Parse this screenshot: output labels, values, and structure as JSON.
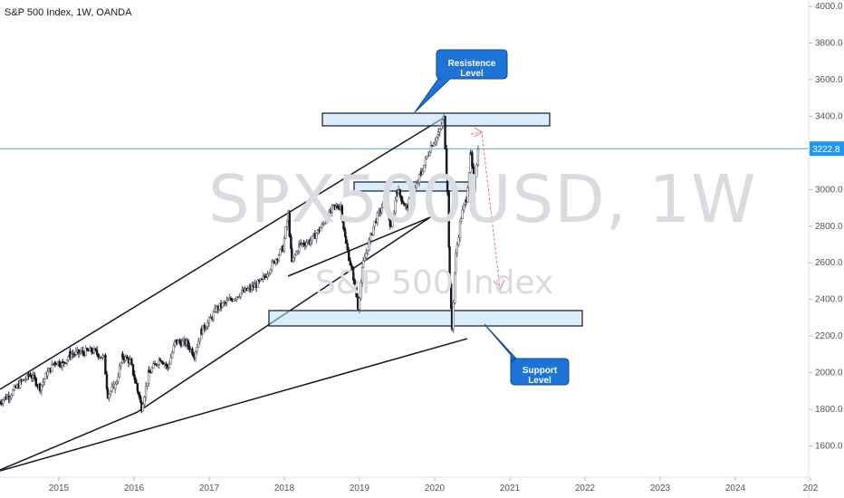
{
  "chart_data": {
    "type": "candlestick",
    "title": "S&P 500 Index, 1W, OANDA",
    "watermark_symbol": "SPX500USD, 1W",
    "watermark_name": "S&P 500 Index",
    "y_ticks": [
      "4000.0",
      "3800.0",
      "3600.0",
      "3400.0",
      "3200.0",
      "3000.0",
      "2800.0",
      "2600.0",
      "2400.0",
      "2200.0",
      "2000.0",
      "1800.0",
      "1600.0"
    ],
    "x_ticks": [
      "2015",
      "2016",
      "2017",
      "2018",
      "2019",
      "2020",
      "2021",
      "2022",
      "2023",
      "2024",
      "202"
    ],
    "ylim": [
      1480,
      4020
    ],
    "last_price": "3222.8",
    "prices": [
      [
        2014.2,
        1840
      ],
      [
        2014.35,
        1880
      ],
      [
        2014.5,
        1950
      ],
      [
        2014.62,
        1990
      ],
      [
        2014.75,
        1920
      ],
      [
        2014.85,
        2000
      ],
      [
        2014.95,
        2060
      ],
      [
        2015.05,
        2050
      ],
      [
        2015.15,
        2100
      ],
      [
        2015.3,
        2110
      ],
      [
        2015.45,
        2120
      ],
      [
        2015.6,
        2080
      ],
      [
        2015.65,
        1880
      ],
      [
        2015.75,
        1930
      ],
      [
        2015.85,
        2090
      ],
      [
        2015.95,
        2060
      ],
      [
        2016.05,
        1900
      ],
      [
        2016.1,
        1810
      ],
      [
        2016.2,
        2000
      ],
      [
        2016.35,
        2080
      ],
      [
        2016.45,
        2030
      ],
      [
        2016.55,
        2170
      ],
      [
        2016.7,
        2160
      ],
      [
        2016.8,
        2100
      ],
      [
        2016.9,
        2230
      ],
      [
        2016.98,
        2270
      ],
      [
        2017.1,
        2350
      ],
      [
        2017.25,
        2390
      ],
      [
        2017.4,
        2430
      ],
      [
        2017.55,
        2460
      ],
      [
        2017.7,
        2500
      ],
      [
        2017.85,
        2600
      ],
      [
        2017.98,
        2680
      ],
      [
        2018.05,
        2860
      ],
      [
        2018.1,
        2600
      ],
      [
        2018.2,
        2700
      ],
      [
        2018.35,
        2720
      ],
      [
        2018.5,
        2800
      ],
      [
        2018.65,
        2900
      ],
      [
        2018.75,
        2910
      ],
      [
        2018.82,
        2700
      ],
      [
        2018.92,
        2520
      ],
      [
        2018.98,
        2360
      ],
      [
        2019.05,
        2600
      ],
      [
        2019.2,
        2820
      ],
      [
        2019.35,
        2950
      ],
      [
        2019.42,
        2780
      ],
      [
        2019.5,
        3000
      ],
      [
        2019.62,
        2900
      ],
      [
        2019.72,
        2980
      ],
      [
        2019.82,
        3090
      ],
      [
        2019.95,
        3240
      ],
      [
        2020.05,
        3300
      ],
      [
        2020.12,
        3390
      ],
      [
        2020.17,
        3000
      ],
      [
        2020.2,
        2500
      ],
      [
        2020.23,
        2240
      ],
      [
        2020.28,
        2640
      ],
      [
        2020.35,
        2850
      ],
      [
        2020.42,
        2950
      ],
      [
        2020.48,
        3190
      ],
      [
        2020.52,
        3020
      ],
      [
        2020.58,
        3222.8
      ]
    ],
    "annotations": [
      {
        "text": "Resistence Level"
      },
      {
        "text": "Support Level"
      }
    ]
  }
}
